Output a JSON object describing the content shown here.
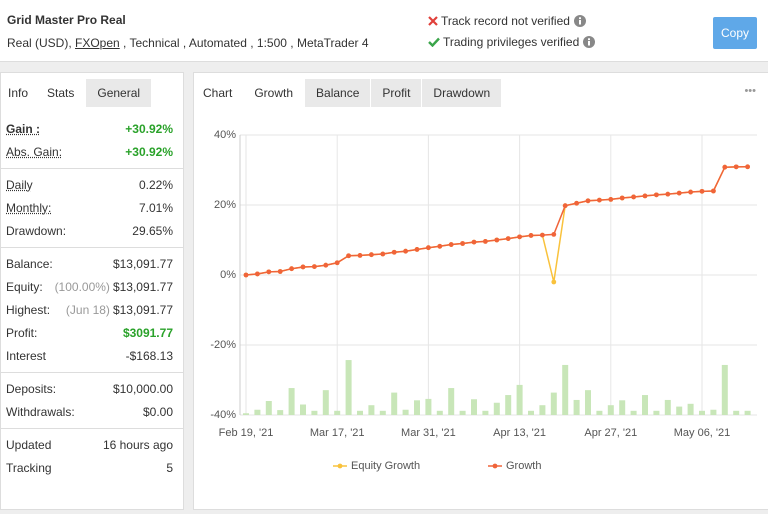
{
  "header": {
    "title": "Grid Master Pro Real",
    "subtitle_parts": [
      "Real (USD), ",
      "FXOpen",
      " , Technical , Automated , 1:500 , MetaTrader 4"
    ],
    "verification": [
      {
        "text": "Track record not verified",
        "color": "#e0403a"
      },
      {
        "text": "Trading privileges verified",
        "color": "#3aa54a"
      }
    ],
    "copy_button": "Copy"
  },
  "side_tabs": [
    "Info",
    "Stats",
    "General"
  ],
  "stats": {
    "groups": [
      {
        "rows": [
          {
            "label": "Gain :",
            "value": "+30.92%",
            "color": "#2aa22a",
            "underline": true,
            "bold": true
          },
          {
            "label": "Abs. Gain:",
            "value": "+30.92%",
            "color": "#2aa22a",
            "underline": true
          }
        ]
      },
      {
        "rows": [
          {
            "label": "Daily",
            "value": "0.22%",
            "underline": true
          },
          {
            "label": "Monthly:",
            "value": "7.01%",
            "underline": true
          },
          {
            "label": "Drawdown:",
            "value": "29.65%"
          }
        ]
      },
      {
        "rows": [
          {
            "label": "Balance:",
            "value": "$13,091.77"
          },
          {
            "label": "Equity:",
            "note": "(100.00%)",
            "value": "$13,091.77"
          },
          {
            "label": "Highest:",
            "note": "(Jun 18)",
            "value": "$13,091.77"
          },
          {
            "label": "Profit:",
            "value": "$3091.77",
            "color": "#2aa22a"
          },
          {
            "label": "Interest",
            "value": "-$168.13"
          }
        ]
      },
      {
        "rows": [
          {
            "label": "Deposits:",
            "value": "$10,000.00"
          },
          {
            "label": "Withdrawals:",
            "value": "$0.00"
          }
        ]
      },
      {
        "rows": [
          {
            "label": "Updated",
            "value": "16 hours ago"
          },
          {
            "label": "Tracking",
            "value": "5"
          }
        ]
      }
    ]
  },
  "chart_tabs": {
    "label": "Chart",
    "tabs": [
      "Growth",
      "Balance",
      "Profit",
      "Drawdown"
    ],
    "menu": "•••"
  },
  "chart_data": {
    "type": "line",
    "categories": [
      "Feb 19, '21",
      null,
      null,
      null,
      null,
      null,
      null,
      null,
      "Mar 17, '21",
      null,
      null,
      null,
      null,
      null,
      null,
      null,
      "Mar 31, '21",
      null,
      null,
      null,
      null,
      null,
      null,
      null,
      "Apr 13, '21",
      null,
      null,
      null,
      null,
      null,
      null,
      null,
      "Apr 27, '21",
      null,
      null,
      null,
      null,
      null,
      null,
      null,
      "May 06, '21",
      null,
      null,
      null,
      null
    ],
    "series": [
      {
        "name": "Equity Growth",
        "color": "#f9c23c",
        "values": [
          0,
          0.3,
          0.9,
          1.0,
          1.8,
          2.3,
          2.4,
          2.8,
          3.5,
          5.5,
          5.6,
          5.8,
          6.0,
          6.5,
          6.8,
          7.3,
          7.8,
          8.2,
          8.7,
          9.0,
          9.4,
          9.6,
          10.0,
          10.4,
          10.9,
          11.3,
          11.4,
          -2,
          19.8,
          20.5,
          21.2,
          21.4,
          21.6,
          22.0,
          22.3,
          22.6,
          22.9,
          23.1,
          23.4,
          23.7,
          23.9,
          24.0,
          30.8,
          30.9,
          30.92
        ]
      },
      {
        "name": "Growth",
        "color": "#f0643a",
        "values": [
          0,
          0.3,
          0.9,
          1.0,
          1.8,
          2.3,
          2.4,
          2.8,
          3.5,
          5.5,
          5.6,
          5.8,
          6.0,
          6.5,
          6.8,
          7.3,
          7.8,
          8.2,
          8.7,
          9.0,
          9.4,
          9.6,
          10.0,
          10.4,
          10.9,
          11.3,
          11.4,
          11.6,
          19.8,
          20.5,
          21.2,
          21.4,
          21.6,
          22.0,
          22.3,
          22.6,
          22.9,
          23.1,
          23.4,
          23.7,
          23.9,
          24.0,
          30.8,
          30.9,
          30.92
        ]
      },
      {
        "type": "bar",
        "color": "#c8e6b8",
        "values": [
          -39.5,
          -38.5,
          -36,
          -38.6,
          -32.3,
          -37,
          -38.8,
          -32.9,
          -38.8,
          -24.3,
          -38.8,
          -37.2,
          -38.8,
          -33.6,
          -38.5,
          -35.8,
          -35.4,
          -38.8,
          -32.3,
          -38.8,
          -35.5,
          -38.8,
          -36.5,
          -34.3,
          -31.4,
          -38.8,
          -37.2,
          -33.6,
          -25.7,
          -35.7,
          -32.9,
          -38.8,
          -37.2,
          -35.8,
          -38.8,
          -34.3,
          -38.8,
          -35.7,
          -37.6,
          -36.8,
          -38.8,
          -38.5,
          -25.7,
          -38.8,
          -38.8
        ]
      }
    ],
    "ylim": [
      -40,
      40
    ],
    "yticks": [
      {
        "value": 40,
        "label": "40%"
      },
      {
        "value": 20,
        "label": "20%"
      },
      {
        "value": 0,
        "label": "0%"
      },
      {
        "value": -20,
        "label": "-20%"
      },
      {
        "value": -40,
        "label": "-40%"
      }
    ],
    "grid": true,
    "legend": "bottom"
  }
}
